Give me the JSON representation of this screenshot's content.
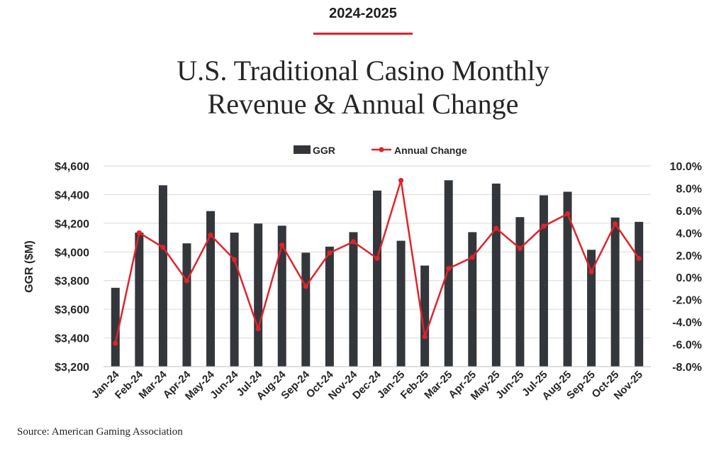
{
  "header": {
    "kicker": "2024-2025",
    "title_line1": "U.S. Traditional Casino Monthly",
    "title_line2": "Revenue & Annual Change"
  },
  "source": "Source: American Gaming Association",
  "colors": {
    "bar": "#33373b",
    "line": "#e0232b",
    "grid": "#d9d9d9",
    "accent": "#e0232b"
  },
  "chart_data": {
    "type": "bar",
    "title": "U.S. Traditional Casino Monthly Revenue & Annual Change",
    "categories": [
      "Jan-24",
      "Feb-24",
      "Mar-24",
      "Apr-24",
      "May-24",
      "Jun-24",
      "Jul-24",
      "Aug-24",
      "Sep-24",
      "Oct-24",
      "Nov-24",
      "Dec-24",
      "Jan-25",
      "Feb-25",
      "Mar-25",
      "Apr-25",
      "May-25",
      "Jun-25",
      "Jul-25",
      "Aug-25",
      "Sep-25",
      "Oct-25",
      "Nov-25"
    ],
    "series": [
      {
        "name": "GGR",
        "type": "bar",
        "axis": "left",
        "values": [
          3750,
          4135,
          4465,
          4060,
          4285,
          4135,
          4198,
          4183,
          3995,
          4037,
          4138,
          4428,
          4078,
          3905,
          4500,
          4138,
          4477,
          4243,
          4395,
          4420,
          4015,
          4240,
          4210
        ]
      },
      {
        "name": "Annual Change",
        "type": "line",
        "axis": "right",
        "values": [
          -5.9,
          4.0,
          2.7,
          -0.3,
          3.8,
          1.6,
          -4.6,
          2.9,
          -0.8,
          2.2,
          3.2,
          1.7,
          8.7,
          -5.3,
          0.8,
          1.8,
          4.4,
          2.6,
          4.6,
          5.7,
          0.5,
          4.8,
          1.7
        ]
      }
    ],
    "ylabel": "GGR ($M)",
    "ylim": [
      3200,
      4600
    ],
    "yticks": [
      3200,
      3400,
      3600,
      3800,
      4000,
      4200,
      4400,
      4600
    ],
    "ytick_labels": [
      "$3,200",
      "$3,400",
      "$3,600",
      "$3,800",
      "$4,000",
      "$4,200",
      "$4,400",
      "$4,600"
    ],
    "y2lim": [
      -8,
      10
    ],
    "y2ticks": [
      -8,
      -6,
      -4,
      -2,
      0,
      2,
      4,
      6,
      8,
      10
    ],
    "y2tick_labels": [
      "-8.0%",
      "-6.0%",
      "-4.0%",
      "-2.0%",
      "0.0%",
      "2.0%",
      "4.0%",
      "6.0%",
      "8.0%",
      "10.0%"
    ],
    "legend": [
      "GGR",
      "Annual Change"
    ],
    "legend_position": "top-center",
    "grid": true
  }
}
